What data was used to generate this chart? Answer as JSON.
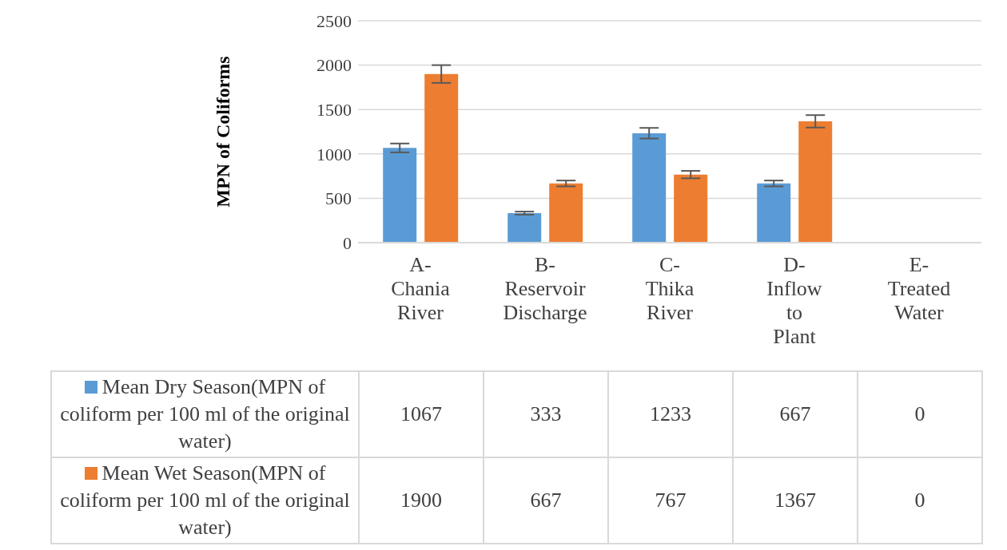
{
  "chart_data": {
    "type": "bar",
    "ylabel": "MPN of Coliforms",
    "categories": [
      "A-Chania River",
      "B-Reservoir Discharge",
      "C-Thika River",
      "D-Inflow to Plant",
      "E-Treated Water"
    ],
    "series": [
      {
        "name": "Mean Dry Season(MPN of coliform per 100 ml of the original water)",
        "color": "#5b9bd5",
        "values": [
          1067,
          333,
          1233,
          667,
          0
        ],
        "errors": [
          50,
          17,
          60,
          33,
          null
        ]
      },
      {
        "name": "Mean Wet Season(MPN of coliform per 100 ml of the original water)",
        "color": "#ed7d31",
        "values": [
          1900,
          667,
          767,
          1367,
          0
        ],
        "errors": [
          100,
          33,
          42,
          70,
          null
        ]
      }
    ],
    "ylim": [
      0,
      2500
    ],
    "yticks": [
      0,
      500,
      1000,
      1500,
      2000,
      2500
    ],
    "grid": "y",
    "legend": "bottom",
    "data_labels": true
  }
}
